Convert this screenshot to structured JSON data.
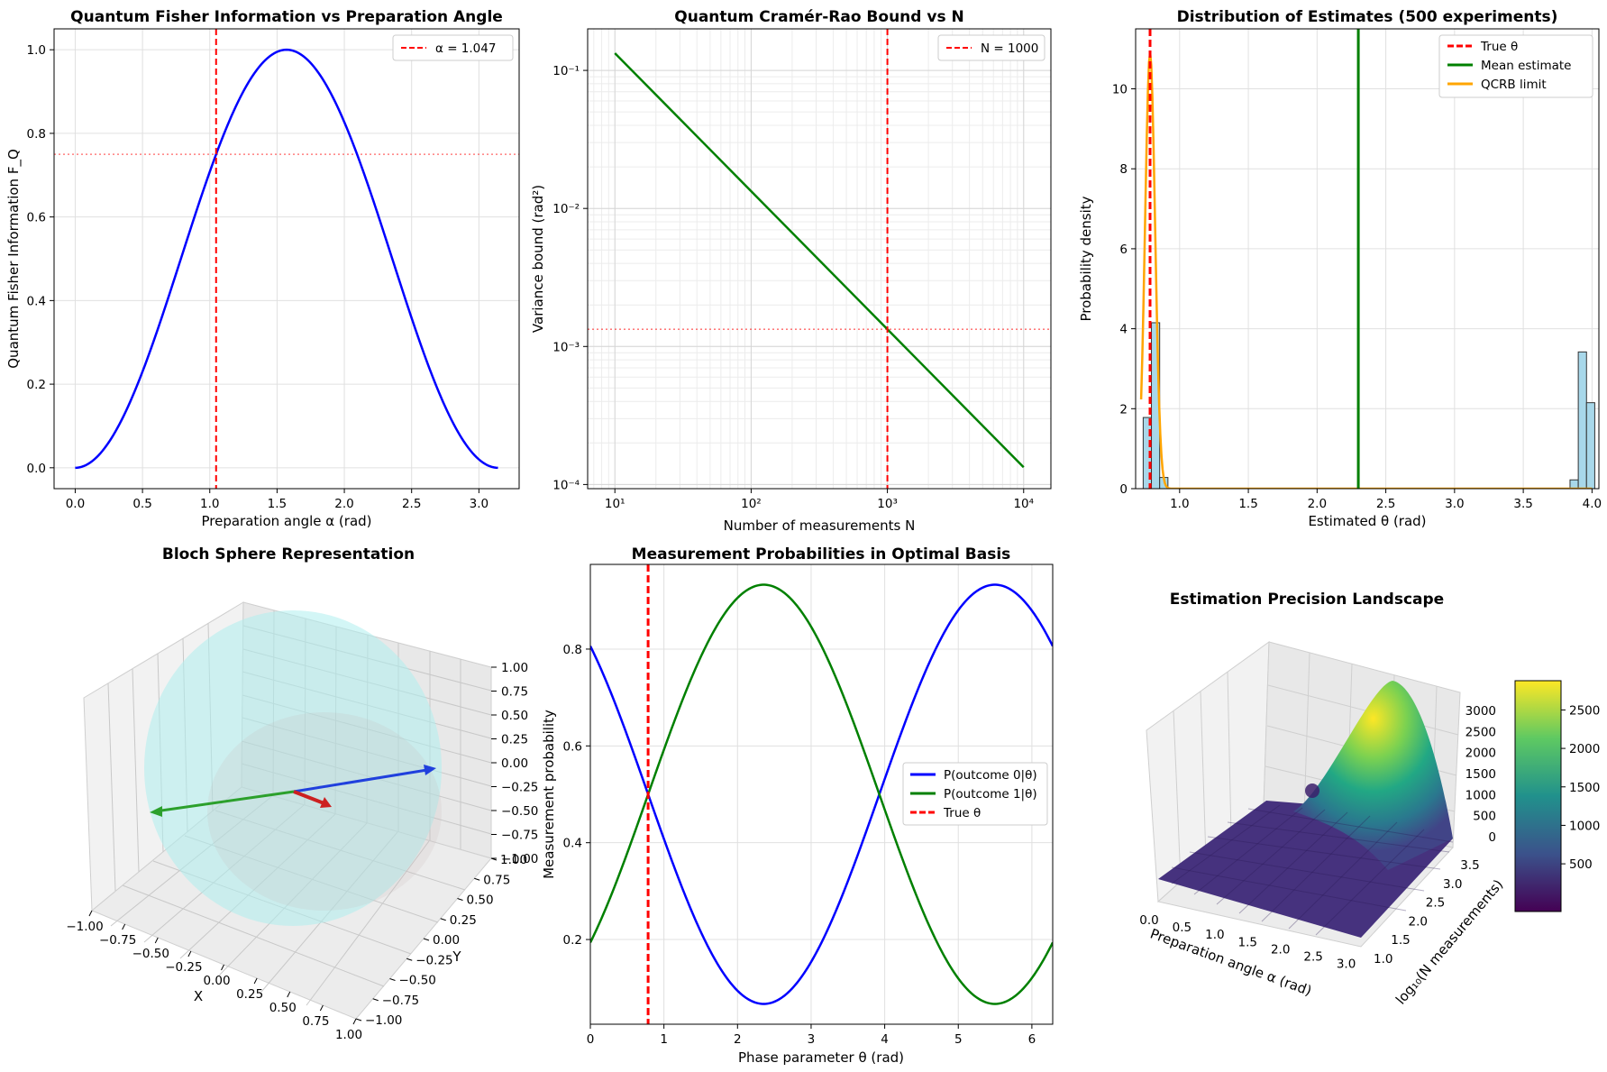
{
  "figure": {
    "titles": {
      "p1": "Quantum Fisher Information vs Preparation Angle",
      "p2": "Quantum Cramér-Rao Bound vs N",
      "p3": "Distribution of Estimates (500 experiments)",
      "p4": "Bloch Sphere Representation",
      "p5": "Measurement Probabilities in Optimal Basis",
      "p6": "Estimation Precision Landscape"
    }
  },
  "colors": {
    "blue": "#0000ff",
    "red": "#ff0000",
    "green": "#008000",
    "orange": "#ffa500",
    "skyblue": "#a8d8ea",
    "cyan": "#aeeeee"
  },
  "chart_data": [
    {
      "id": "p1",
      "type": "line",
      "title": "Quantum Fisher Information vs Preparation Angle",
      "xlabel": "Preparation angle α (rad)",
      "ylabel": "Quantum Fisher Information F_Q",
      "xlim": [
        -0.157,
        3.299
      ],
      "ylim": [
        -0.05,
        1.05
      ],
      "xticks": [
        "0.0",
        "0.5",
        "1.0",
        "1.5",
        "2.0",
        "2.5",
        "3.0"
      ],
      "yticks": [
        "0.0",
        "0.2",
        "0.4",
        "0.6",
        "0.8",
        "1.0"
      ],
      "series": [
        {
          "values_formula": "sin(α)^2 for α in [0, π]"
        }
      ],
      "vline": {
        "x": 1.047,
        "label": "α = 1.047"
      },
      "hline": {
        "y": 0.75
      },
      "grid": true,
      "legend": "top-right"
    },
    {
      "id": "p2",
      "type": "line",
      "title": "Quantum Cramér-Rao Bound vs N",
      "xlabel": "Number of measurements N",
      "ylabel": "Variance bound (rad²)",
      "xscale": "log",
      "yscale": "log",
      "xlim": [
        6.31,
        15850
      ],
      "ylim": [
        9.33e-05,
        0.2
      ],
      "xticks": [
        "10¹",
        "10²",
        "10³",
        "10⁴"
      ],
      "yticks": [
        "10⁻⁴",
        "10⁻³",
        "10⁻²",
        "10⁻¹"
      ],
      "series": [
        {
          "x": [
            10,
            10000
          ],
          "values": [
            0.1333,
            0.0001333
          ]
        }
      ],
      "vline": {
        "x": 1000,
        "label": "N = 1000"
      },
      "hline": {
        "y": 0.001333
      },
      "grid": true,
      "legend": "top-right"
    },
    {
      "id": "p3",
      "type": "bar",
      "title": "Distribution of Estimates (500 experiments)",
      "xlabel": "Estimated θ (rad)",
      "ylabel": "Probability density",
      "xlim": [
        0.68,
        4.05
      ],
      "ylim": [
        0,
        11.5
      ],
      "xticks": [
        "1.0",
        "1.5",
        "2.0",
        "2.5",
        "3.0",
        "3.5",
        "4.0"
      ],
      "yticks": [
        "0",
        "2",
        "4",
        "6",
        "8",
        "10"
      ],
      "bins": [
        {
          "x0": 0.735,
          "x1": 0.795,
          "value": 1.78
        },
        {
          "x0": 0.795,
          "x1": 0.855,
          "value": 4.15
        },
        {
          "x0": 0.855,
          "x1": 0.915,
          "value": 0.28
        },
        {
          "x0": 3.84,
          "x1": 3.9,
          "value": 0.22
        },
        {
          "x0": 3.9,
          "x1": 3.96,
          "value": 3.42
        },
        {
          "x0": 3.96,
          "x1": 4.02,
          "value": 2.15
        }
      ],
      "lines": [
        {
          "name": "True θ",
          "x": 0.785
        },
        {
          "name": "Mean estimate",
          "x": 2.3
        }
      ],
      "qcrb": {
        "name": "QCRB limit",
        "mean": 0.785,
        "sigma": 0.0365,
        "peak": 10.9
      },
      "grid": true,
      "legend": "top-right"
    },
    {
      "id": "p4",
      "type": "scatter",
      "title": "Bloch Sphere Representation",
      "xlabel": "X",
      "ylabel": "Y",
      "xticks": [
        "−1.00",
        "−0.75",
        "−0.50",
        "−0.25",
        "0.00",
        "0.25",
        "0.50",
        "0.75",
        "1.00"
      ],
      "yticks": [
        "−1.00",
        "−0.75",
        "−0.50",
        "−0.25",
        "0.00",
        "0.25",
        "0.50",
        "0.75",
        "1.00"
      ],
      "zticks": [
        "1.00",
        "0.75",
        "0.50",
        "0.25",
        "0.00",
        "−0.25",
        "−0.50",
        "−0.75",
        "−1.00"
      ]
    },
    {
      "id": "p5",
      "type": "line",
      "title": "Measurement Probabilities in Optimal Basis",
      "xlabel": "Phase parameter θ (rad)",
      "ylabel": "Measurement probability",
      "xlim": [
        0,
        6.283
      ],
      "ylim": [
        0.025,
        0.975
      ],
      "xticks": [
        "0",
        "1",
        "2",
        "3",
        "4",
        "5",
        "6"
      ],
      "yticks": [
        "0.2",
        "0.4",
        "0.6",
        "0.8"
      ],
      "series": [
        {
          "name": "P(outcome 0|θ)",
          "formula": "0.5 + 0.433*cos(θ + π/4)"
        },
        {
          "name": "P(outcome 1|θ)",
          "formula": "0.5 − 0.433*cos(θ + π/4)"
        }
      ],
      "vline": {
        "name": "True θ",
        "x": 0.785
      },
      "grid": true,
      "legend": "center-right"
    },
    {
      "id": "p6",
      "type": "heatmap",
      "title": "Estimation Precision Landscape",
      "xlabel": "Preparation angle α (rad)",
      "ylabel": "log₁₀(N measurements)",
      "xticks": [
        "0.0",
        "0.5",
        "1.0",
        "1.5",
        "2.0",
        "2.5",
        "3.0"
      ],
      "yticks": [
        "1.0",
        "1.5",
        "2.0",
        "2.5",
        "3.0",
        "3.5"
      ],
      "zticks": [
        "0",
        "500",
        "1000",
        "1500",
        "2000",
        "2500",
        "3000"
      ],
      "colorbar_ticks": [
        "500",
        "1000",
        "1500",
        "2000",
        "2500"
      ]
    }
  ]
}
